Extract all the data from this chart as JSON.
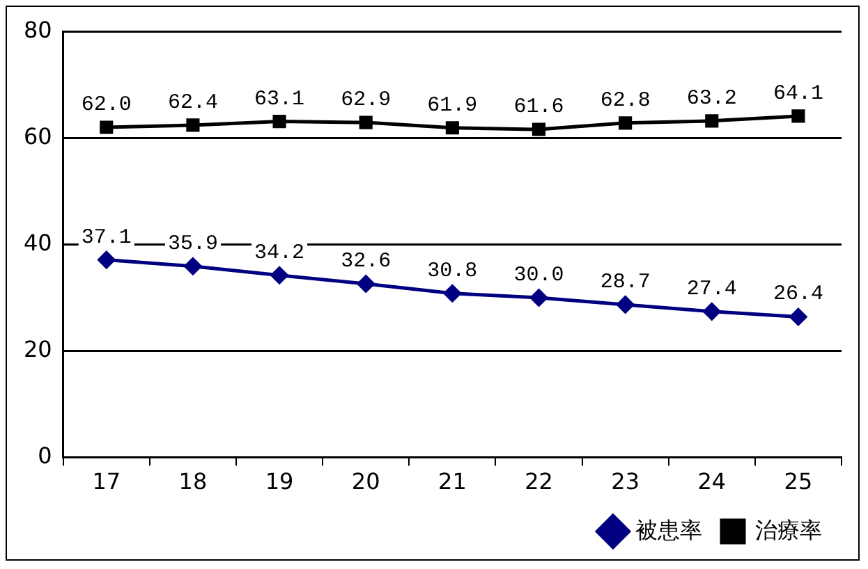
{
  "chart_data": {
    "type": "line",
    "categories": [
      "17",
      "18",
      "19",
      "20",
      "21",
      "22",
      "23",
      "24",
      "25"
    ],
    "ylim": [
      0,
      80
    ],
    "yticks": [
      0,
      20,
      40,
      60,
      80
    ],
    "grid": "y",
    "legend": "bottom",
    "series": [
      {
        "name": "被患率",
        "color": "#000080",
        "marker": "diamond",
        "values": [
          37.1,
          35.9,
          34.2,
          32.6,
          30.8,
          30.0,
          28.7,
          27.4,
          26.4
        ],
        "value_labels": [
          "37.1",
          "35.9",
          "34.2",
          "32.6",
          "30.8",
          "30.0",
          "28.7",
          "27.4",
          "26.4"
        ]
      },
      {
        "name": "治療率",
        "color": "#000000",
        "marker": "square",
        "values": [
          62.0,
          62.4,
          63.1,
          62.9,
          61.9,
          61.6,
          62.8,
          63.2,
          64.1
        ],
        "value_labels": [
          "62.0",
          "62.4",
          "63.1",
          "62.9",
          "61.9",
          "61.6",
          "62.8",
          "63.2",
          "64.1"
        ]
      }
    ]
  }
}
